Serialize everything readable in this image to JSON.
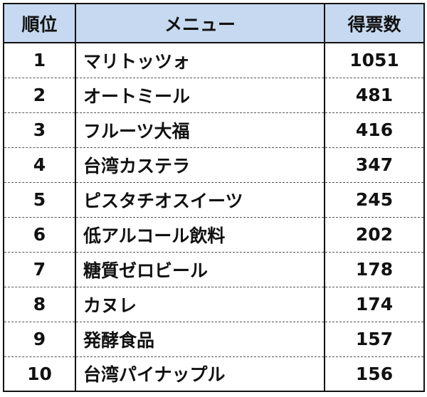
{
  "table": {
    "headers": {
      "rank": "順位",
      "menu": "メニュー",
      "votes": "得票数"
    },
    "rows": [
      {
        "rank": "1",
        "menu": "マリトッツォ",
        "votes": "1051"
      },
      {
        "rank": "2",
        "menu": "オートミール",
        "votes": "481"
      },
      {
        "rank": "3",
        "menu": "フルーツ大福",
        "votes": "416"
      },
      {
        "rank": "4",
        "menu": "台湾カステラ",
        "votes": "347"
      },
      {
        "rank": "5",
        "menu": "ピスタチオスイーツ",
        "votes": "245"
      },
      {
        "rank": "6",
        "menu": "低アルコール飲料",
        "votes": "202"
      },
      {
        "rank": "7",
        "menu": "糖質ゼロビール",
        "votes": "178"
      },
      {
        "rank": "8",
        "menu": "カヌレ",
        "votes": "174"
      },
      {
        "rank": "9",
        "menu": "発酵食品",
        "votes": "157"
      },
      {
        "rank": "10",
        "menu": "台湾パイナップル",
        "votes": "156"
      }
    ]
  },
  "colors": {
    "header_background": "#c6d9f0",
    "border": "#111111",
    "row_separator": "#555555",
    "text": "#111111"
  }
}
